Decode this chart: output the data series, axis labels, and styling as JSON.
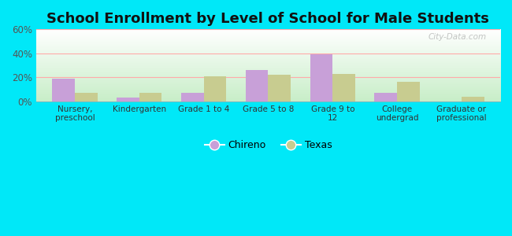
{
  "title": "School Enrollment by Level of School for Male Students",
  "categories": [
    "Nursery,\npreschool",
    "Kindergarten",
    "Grade 1 to 4",
    "Grade 5 to 8",
    "Grade 9 to\n12",
    "College\nundergrad",
    "Graduate or\nprofessional"
  ],
  "chireno": [
    19,
    3,
    7,
    26,
    39,
    7,
    0
  ],
  "texas": [
    7,
    7,
    21,
    22,
    23,
    16,
    4
  ],
  "chireno_color": "#c8a0d8",
  "texas_color": "#c8cc90",
  "ylim": [
    0,
    60
  ],
  "yticks": [
    0,
    20,
    40,
    60
  ],
  "ytick_labels": [
    "0%",
    "20%",
    "40%",
    "60%"
  ],
  "legend_labels": [
    "Chireno",
    "Texas"
  ],
  "background_outer": "#00e8f8",
  "title_fontsize": 13,
  "bar_width": 0.35,
  "watermark": "City-Data.com",
  "grid_color": "#ffaaaa",
  "plot_bg_top": "#ffffff",
  "plot_bg_bottom": "#c8eec8"
}
